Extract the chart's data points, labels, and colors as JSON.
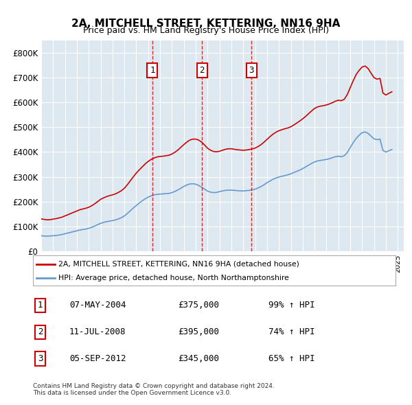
{
  "title": "2A, MITCHELL STREET, KETTERING, NN16 9HA",
  "subtitle": "Price paid vs. HM Land Registry's House Price Index (HPI)",
  "background_color": "#dde8f0",
  "plot_bg_color": "#dde8f0",
  "ylabel_color": "#000000",
  "ylim": [
    0,
    850000
  ],
  "yticks": [
    0,
    100000,
    200000,
    300000,
    400000,
    500000,
    600000,
    700000,
    800000
  ],
  "ytick_labels": [
    "£0",
    "£100K",
    "£200K",
    "£300K",
    "£400K",
    "£500K",
    "£600K",
    "£700K",
    "£800K"
  ],
  "xlim_start": 1995.0,
  "xlim_end": 2025.5,
  "sale_dates": [
    2004.35,
    2008.53,
    2012.68
  ],
  "sale_prices": [
    375000,
    395000,
    345000
  ],
  "sale_labels": [
    "1",
    "2",
    "3"
  ],
  "sale_info": [
    {
      "label": "1",
      "date": "07-MAY-2004",
      "price": "£375,000",
      "hpi": "99% ↑ HPI"
    },
    {
      "label": "2",
      "date": "11-JUL-2008",
      "price": "£395,000",
      "hpi": "74% ↑ HPI"
    },
    {
      "label": "3",
      "date": "05-SEP-2012",
      "price": "£345,000",
      "hpi": "65% ↑ HPI"
    }
  ],
  "red_line_color": "#cc0000",
  "blue_line_color": "#6699cc",
  "legend_label_red": "2A, MITCHELL STREET, KETTERING, NN16 9HA (detached house)",
  "legend_label_blue": "HPI: Average price, detached house, North Northamptonshire",
  "footer": "Contains HM Land Registry data © Crown copyright and database right 2024.\nThis data is licensed under the Open Government Licence v3.0.",
  "hpi_x": [
    1995.0,
    1995.25,
    1995.5,
    1995.75,
    1996.0,
    1996.25,
    1996.5,
    1996.75,
    1997.0,
    1997.25,
    1997.5,
    1997.75,
    1998.0,
    1998.25,
    1998.5,
    1998.75,
    1999.0,
    1999.25,
    1999.5,
    1999.75,
    2000.0,
    2000.25,
    2000.5,
    2000.75,
    2001.0,
    2001.25,
    2001.5,
    2001.75,
    2002.0,
    2002.25,
    2002.5,
    2002.75,
    2003.0,
    2003.25,
    2003.5,
    2003.75,
    2004.0,
    2004.25,
    2004.5,
    2004.75,
    2005.0,
    2005.25,
    2005.5,
    2005.75,
    2006.0,
    2006.25,
    2006.5,
    2006.75,
    2007.0,
    2007.25,
    2007.5,
    2007.75,
    2008.0,
    2008.25,
    2008.5,
    2008.75,
    2009.0,
    2009.25,
    2009.5,
    2009.75,
    2010.0,
    2010.25,
    2010.5,
    2010.75,
    2011.0,
    2011.25,
    2011.5,
    2011.75,
    2012.0,
    2012.25,
    2012.5,
    2012.75,
    2013.0,
    2013.25,
    2013.5,
    2013.75,
    2014.0,
    2014.25,
    2014.5,
    2014.75,
    2015.0,
    2015.25,
    2015.5,
    2015.75,
    2016.0,
    2016.25,
    2016.5,
    2016.75,
    2017.0,
    2017.25,
    2017.5,
    2017.75,
    2018.0,
    2018.25,
    2018.5,
    2018.75,
    2019.0,
    2019.25,
    2019.5,
    2019.75,
    2020.0,
    2020.25,
    2020.5,
    2020.75,
    2021.0,
    2021.25,
    2021.5,
    2021.75,
    2022.0,
    2022.25,
    2022.5,
    2022.75,
    2023.0,
    2023.25,
    2023.5,
    2023.75,
    2024.0,
    2024.25,
    2024.5
  ],
  "hpi_y": [
    62000,
    61000,
    60500,
    61000,
    62000,
    63000,
    65000,
    67000,
    70000,
    73000,
    76000,
    79000,
    82000,
    85000,
    87000,
    89000,
    92000,
    96000,
    101000,
    107000,
    112000,
    116000,
    119000,
    121000,
    123000,
    126000,
    130000,
    135000,
    142000,
    152000,
    163000,
    174000,
    184000,
    194000,
    203000,
    211000,
    218000,
    223000,
    227000,
    229000,
    230000,
    231000,
    232000,
    233000,
    236000,
    241000,
    247000,
    254000,
    261000,
    267000,
    271000,
    272000,
    270000,
    265000,
    258000,
    250000,
    242000,
    238000,
    236000,
    237000,
    240000,
    243000,
    245000,
    246000,
    246000,
    245000,
    244000,
    243000,
    243000,
    244000,
    245000,
    247000,
    250000,
    255000,
    261000,
    268000,
    276000,
    283000,
    290000,
    295000,
    299000,
    302000,
    305000,
    308000,
    312000,
    317000,
    322000,
    327000,
    333000,
    340000,
    347000,
    354000,
    360000,
    364000,
    366000,
    368000,
    370000,
    373000,
    377000,
    381000,
    383000,
    381000,
    385000,
    398000,
    418000,
    438000,
    455000,
    468000,
    478000,
    481000,
    475000,
    464000,
    453000,
    450000,
    452000,
    406000,
    400000,
    405000,
    410000
  ],
  "red_x": [
    1995.0,
    1995.25,
    1995.5,
    1995.75,
    1996.0,
    1996.25,
    1996.5,
    1996.75,
    1997.0,
    1997.25,
    1997.5,
    1997.75,
    1998.0,
    1998.25,
    1998.5,
    1998.75,
    1999.0,
    1999.25,
    1999.5,
    1999.75,
    2000.0,
    2000.25,
    2000.5,
    2000.75,
    2001.0,
    2001.25,
    2001.5,
    2001.75,
    2002.0,
    2002.25,
    2002.5,
    2002.75,
    2003.0,
    2003.25,
    2003.5,
    2003.75,
    2004.0,
    2004.25,
    2004.5,
    2004.75,
    2005.0,
    2005.25,
    2005.5,
    2005.75,
    2006.0,
    2006.25,
    2006.5,
    2006.75,
    2007.0,
    2007.25,
    2007.5,
    2007.75,
    2008.0,
    2008.25,
    2008.5,
    2008.75,
    2009.0,
    2009.25,
    2009.5,
    2009.75,
    2010.0,
    2010.25,
    2010.5,
    2010.75,
    2011.0,
    2011.25,
    2011.5,
    2011.75,
    2012.0,
    2012.25,
    2012.5,
    2012.75,
    2013.0,
    2013.25,
    2013.5,
    2013.75,
    2014.0,
    2014.25,
    2014.5,
    2014.75,
    2015.0,
    2015.25,
    2015.5,
    2015.75,
    2016.0,
    2016.25,
    2016.5,
    2016.75,
    2017.0,
    2017.25,
    2017.5,
    2017.75,
    2018.0,
    2018.25,
    2018.5,
    2018.75,
    2019.0,
    2019.25,
    2019.5,
    2019.75,
    2020.0,
    2020.25,
    2020.5,
    2020.75,
    2021.0,
    2021.25,
    2021.5,
    2021.75,
    2022.0,
    2022.25,
    2022.5,
    2022.75,
    2023.0,
    2023.25,
    2023.5,
    2023.75,
    2024.0,
    2024.25,
    2024.5
  ],
  "red_y": [
    130000,
    128000,
    126000,
    127000,
    129000,
    131000,
    134000,
    137000,
    142000,
    147000,
    152000,
    157000,
    162000,
    167000,
    170000,
    173000,
    177000,
    183000,
    191000,
    200000,
    209000,
    215000,
    220000,
    224000,
    227000,
    231000,
    237000,
    244000,
    254000,
    268000,
    284000,
    300000,
    315000,
    328000,
    340000,
    352000,
    362000,
    370000,
    376000,
    380000,
    382000,
    383000,
    385000,
    387000,
    392000,
    399000,
    408000,
    419000,
    430000,
    440000,
    448000,
    452000,
    452000,
    448000,
    440000,
    428000,
    415000,
    407000,
    402000,
    401000,
    403000,
    407000,
    411000,
    413000,
    413000,
    411000,
    409000,
    408000,
    407000,
    408000,
    410000,
    412000,
    416000,
    422000,
    430000,
    440000,
    451000,
    462000,
    472000,
    480000,
    486000,
    490000,
    494000,
    497000,
    502000,
    509000,
    517000,
    525000,
    534000,
    544000,
    555000,
    566000,
    576000,
    582000,
    585000,
    587000,
    590000,
    594000,
    599000,
    605000,
    609000,
    607000,
    613000,
    632000,
    660000,
    688000,
    713000,
    730000,
    743000,
    747000,
    737000,
    718000,
    700000,
    694000,
    697000,
    638000,
    630000,
    637000,
    643000
  ]
}
